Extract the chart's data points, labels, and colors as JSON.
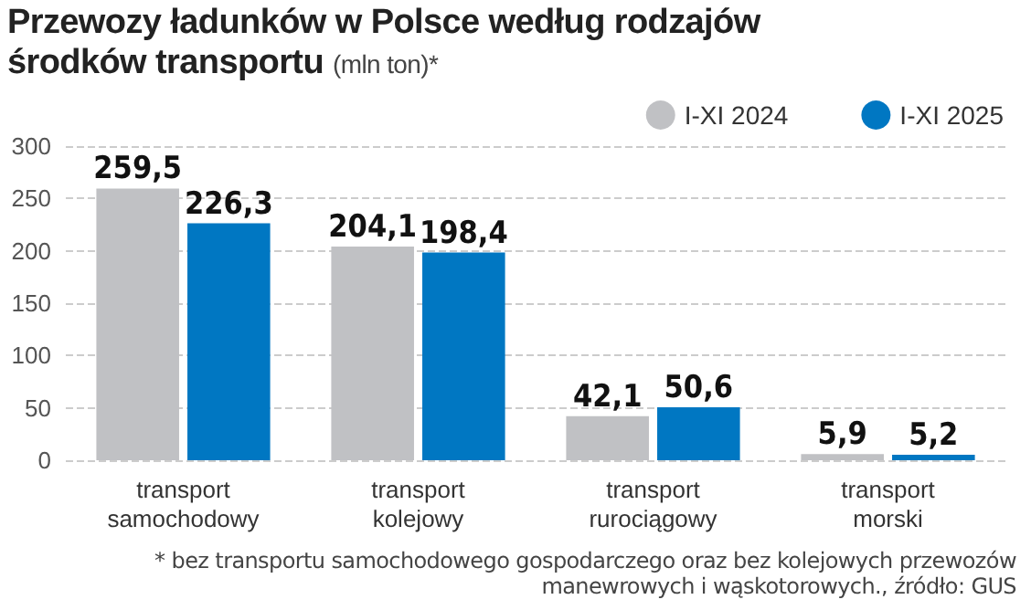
{
  "chart_data": {
    "type": "bar",
    "title": "Przewozy ładunków w Polsce według rodzajów środków transportu",
    "subtitle": "(mln ton)*",
    "categories": [
      "transport samochodowy",
      "transport kolejowy",
      "transport rurociągowy",
      "transport morski"
    ],
    "series": [
      {
        "name": "I-XI 2024",
        "color": "#c0c1c4",
        "values": [
          259.5,
          204.1,
          42.1,
          5.9
        ],
        "value_labels": [
          "259,5",
          "204,1",
          "42,1",
          "5,9"
        ]
      },
      {
        "name": "I-XI 2025",
        "color": "#0077c2",
        "values": [
          226.3,
          198.4,
          50.6,
          5.2
        ],
        "value_labels": [
          "226,3",
          "198,4",
          "50,6",
          "5,2"
        ]
      }
    ],
    "ylim": [
      0,
      300
    ],
    "yticks": [
      0,
      50,
      100,
      150,
      200,
      250,
      300
    ],
    "grid": "y",
    "legend": "top right",
    "annotations": [
      "* bez transportu samochodowego gospodarczego oraz bez kolejowych przewozów manewrowych i wąskotorowych., źródło: GUS"
    ]
  }
}
